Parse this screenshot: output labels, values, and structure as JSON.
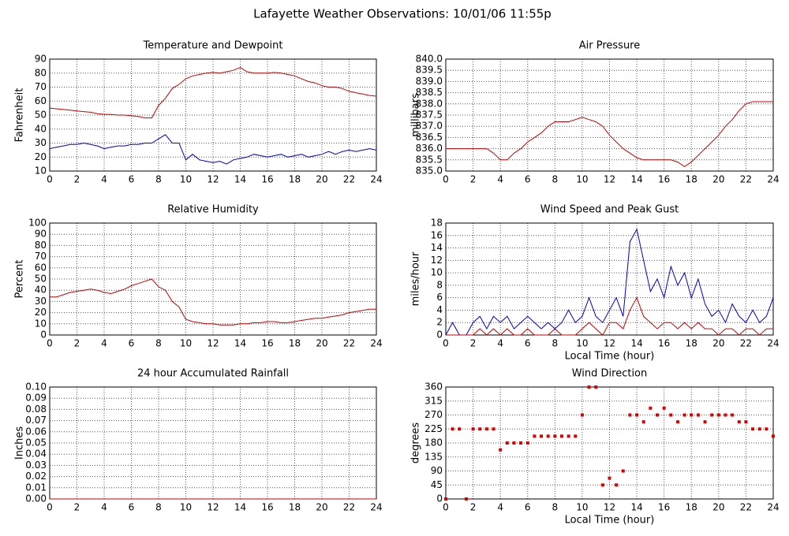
{
  "title": "Lafayette Weather Observations: 10/01/06 11:55p",
  "chart_data": [
    {
      "type": "line",
      "title": "Temperature and Dewpoint",
      "ylabel": "Fahrenheit",
      "x": [
        0,
        0.5,
        1,
        1.5,
        2,
        2.5,
        3,
        3.5,
        4,
        4.5,
        5,
        5.5,
        6,
        6.5,
        7,
        7.5,
        8,
        8.5,
        9,
        9.5,
        10,
        10.5,
        11,
        11.5,
        12,
        12.5,
        13,
        13.5,
        14,
        14.5,
        15,
        15.5,
        16,
        16.5,
        17,
        17.5,
        18,
        18.5,
        19,
        19.5,
        20,
        20.5,
        21,
        21.5,
        22,
        22.5,
        23,
        23.5,
        24
      ],
      "series": [
        {
          "color": "#cc0000",
          "values": [
            55,
            54.5,
            54,
            53.5,
            53,
            52.5,
            52,
            51,
            50.5,
            50.5,
            50,
            50,
            49.5,
            49,
            48,
            48,
            57,
            62,
            69,
            72,
            76,
            78,
            79,
            80,
            80.5,
            80,
            81,
            82,
            84,
            81,
            80,
            80,
            80,
            80.5,
            80,
            79,
            78,
            76,
            74,
            73,
            71,
            70,
            70,
            69,
            67,
            66,
            65,
            64,
            63.5
          ]
        },
        {
          "color": "#0000cc",
          "values": [
            26,
            27,
            28,
            29,
            29,
            30,
            29,
            28,
            26,
            27,
            28,
            28,
            29,
            29,
            30,
            30,
            33,
            36,
            30,
            30,
            18,
            22,
            18,
            17,
            16,
            17,
            15,
            18,
            19,
            20,
            22,
            21,
            20,
            21,
            22,
            20,
            21,
            22,
            20,
            21,
            22,
            24,
            22,
            24,
            25,
            24,
            25,
            26,
            25
          ]
        }
      ],
      "xlim": [
        0,
        24
      ],
      "xticks": [
        0,
        2,
        4,
        6,
        8,
        10,
        12,
        14,
        16,
        18,
        20,
        22,
        24
      ],
      "ylim": [
        10,
        90
      ],
      "yticks": [
        10,
        20,
        30,
        40,
        50,
        60,
        70,
        80,
        90
      ],
      "grid": true
    },
    {
      "type": "line",
      "title": "Air Pressure",
      "ylabel": "millibars",
      "x": [
        0,
        0.5,
        1,
        1.5,
        2,
        2.5,
        3,
        3.5,
        4,
        4.5,
        5,
        5.5,
        6,
        6.5,
        7,
        7.5,
        8,
        8.5,
        9,
        9.5,
        10,
        10.5,
        11,
        11.5,
        12,
        12.5,
        13,
        13.5,
        14,
        14.5,
        15,
        15.5,
        16,
        16.5,
        17,
        17.5,
        18,
        18.5,
        19,
        19.5,
        20,
        20.5,
        21,
        21.5,
        22,
        22.5,
        23,
        23.5,
        24
      ],
      "series": [
        {
          "color": "#cc0000",
          "values": [
            836.0,
            836.0,
            836.0,
            836.0,
            836.0,
            836.0,
            836.0,
            835.8,
            835.5,
            835.5,
            835.8,
            836.0,
            836.3,
            836.5,
            836.7,
            837.0,
            837.2,
            837.2,
            837.2,
            837.3,
            837.4,
            837.3,
            837.2,
            837.0,
            836.6,
            836.3,
            836.0,
            835.8,
            835.6,
            835.5,
            835.5,
            835.5,
            835.5,
            835.5,
            835.4,
            835.2,
            835.4,
            835.7,
            836.0,
            836.3,
            836.6,
            837.0,
            837.3,
            837.7,
            838.0,
            838.1,
            838.1,
            838.1,
            838.1
          ]
        }
      ],
      "xlim": [
        0,
        24
      ],
      "xticks": [
        0,
        2,
        4,
        6,
        8,
        10,
        12,
        14,
        16,
        18,
        20,
        22,
        24
      ],
      "ylim": [
        835,
        840
      ],
      "yticks": [
        {
          "value": 835,
          "label": "835.0"
        },
        835.5,
        {
          "value": 836,
          "label": "836.0"
        },
        836.5,
        {
          "value": 837,
          "label": "837.0"
        },
        837.5,
        {
          "value": 838,
          "label": "838.0"
        },
        838.5,
        {
          "value": 839,
          "label": "839.0"
        },
        839.5,
        {
          "value": 840,
          "label": "840.0"
        }
      ],
      "grid": true
    },
    {
      "type": "line",
      "title": "Relative Humidity",
      "ylabel": "Percent",
      "x": [
        0,
        0.5,
        1,
        1.5,
        2,
        2.5,
        3,
        3.5,
        4,
        4.5,
        5,
        5.5,
        6,
        6.5,
        7,
        7.5,
        8,
        8.5,
        9,
        9.5,
        10,
        10.5,
        11,
        11.5,
        12,
        12.5,
        13,
        13.5,
        14,
        14.5,
        15,
        15.5,
        16,
        16.5,
        17,
        17.5,
        18,
        18.5,
        19,
        19.5,
        20,
        20.5,
        21,
        21.5,
        22,
        22.5,
        23,
        23.5,
        24
      ],
      "series": [
        {
          "color": "#cc0000",
          "values": [
            34,
            34,
            36,
            38,
            39,
            40,
            41,
            40,
            38,
            37,
            39,
            41,
            44,
            46,
            48,
            50,
            43,
            40,
            30,
            25,
            14,
            12,
            11,
            10,
            10,
            9,
            9,
            9,
            10,
            10,
            11,
            11,
            12,
            12,
            11,
            11,
            12,
            13,
            14,
            15,
            15,
            16,
            17,
            18,
            20,
            21,
            22,
            23,
            23
          ]
        }
      ],
      "xlim": [
        0,
        24
      ],
      "xticks": [
        0,
        2,
        4,
        6,
        8,
        10,
        12,
        14,
        16,
        18,
        20,
        22,
        24
      ],
      "ylim": [
        0,
        100
      ],
      "yticks": [
        0,
        10,
        20,
        30,
        40,
        50,
        60,
        70,
        80,
        90,
        100
      ],
      "grid": true
    },
    {
      "type": "line",
      "title": "Wind Speed and Peak Gust",
      "ylabel": "miles/hour",
      "xlabel": "Local Time (hour)",
      "x": [
        0,
        0.5,
        1,
        1.5,
        2,
        2.5,
        3,
        3.5,
        4,
        4.5,
        5,
        5.5,
        6,
        6.5,
        7,
        7.5,
        8,
        8.5,
        9,
        9.5,
        10,
        10.5,
        11,
        11.5,
        12,
        12.5,
        13,
        13.5,
        14,
        14.5,
        15,
        15.5,
        16,
        16.5,
        17,
        17.5,
        18,
        18.5,
        19,
        19.5,
        20,
        20.5,
        21,
        21.5,
        22,
        22.5,
        23,
        23.5,
        24
      ],
      "series": [
        {
          "color": "#0000cc",
          "values": [
            0,
            2,
            0,
            0,
            2,
            3,
            1,
            3,
            2,
            3,
            1,
            2,
            3,
            2,
            1,
            2,
            1,
            2,
            4,
            2,
            3,
            6,
            3,
            2,
            4,
            6,
            3,
            15,
            17,
            12,
            7,
            9,
            6,
            11,
            8,
            10,
            6,
            9,
            5,
            3,
            4,
            2,
            5,
            3,
            2,
            4,
            2,
            3,
            6
          ]
        },
        {
          "color": "#cc0000",
          "values": [
            0,
            0,
            0,
            0,
            0,
            1,
            0,
            1,
            0,
            1,
            0,
            0,
            1,
            0,
            0,
            0,
            1,
            0,
            0,
            0,
            1,
            2,
            1,
            0,
            2,
            2,
            1,
            4,
            6,
            3,
            2,
            1,
            2,
            2,
            1,
            2,
            1,
            2,
            1,
            1,
            0,
            1,
            1,
            0,
            1,
            1,
            0,
            1,
            1
          ]
        }
      ],
      "xlim": [
        0,
        24
      ],
      "xticks": [
        0,
        2,
        4,
        6,
        8,
        10,
        12,
        14,
        16,
        18,
        20,
        22,
        24
      ],
      "ylim": [
        0,
        18
      ],
      "yticks": [
        0,
        2,
        4,
        6,
        8,
        10,
        12,
        14,
        16,
        18
      ],
      "grid": true
    },
    {
      "type": "line",
      "title": "24 hour Accumulated Rainfall",
      "ylabel": "Inches",
      "x": [
        0,
        24
      ],
      "series": [
        {
          "color": "#cc0000",
          "values": [
            0,
            0
          ]
        }
      ],
      "xlim": [
        0,
        24
      ],
      "xticks": [
        0,
        2,
        4,
        6,
        8,
        10,
        12,
        14,
        16,
        18,
        20,
        22,
        24
      ],
      "ylim": [
        0,
        0.1
      ],
      "yticks": [
        {
          "value": 0,
          "label": "0.00"
        },
        0.01,
        0.02,
        0.03,
        0.04,
        0.05,
        0.06,
        0.07,
        0.08,
        0.09,
        {
          "value": 0.1,
          "label": "0.10"
        }
      ],
      "grid": true
    },
    {
      "type": "scatter",
      "title": "Wind Direction",
      "ylabel": "degrees",
      "xlabel": "Local Time (hour)",
      "x": [
        0,
        0.5,
        1,
        1.5,
        2,
        2.5,
        3,
        3.5,
        4,
        4.5,
        5,
        5.5,
        6,
        6.5,
        7,
        7.5,
        8,
        8.5,
        9,
        9.5,
        10,
        10.5,
        11,
        11.5,
        12,
        12.5,
        13,
        13.5,
        14,
        14.5,
        15,
        15.5,
        16,
        16.5,
        17,
        17.5,
        18,
        18.5,
        19,
        19.5,
        20,
        20.5,
        21,
        21.5,
        22,
        22.5,
        23,
        23.5,
        24
      ],
      "series": [
        {
          "color": "#dd0000",
          "values": [
            0,
            225,
            225,
            0,
            225,
            225,
            225,
            225,
            158,
            180,
            180,
            180,
            180,
            202,
            202,
            202,
            202,
            202,
            202,
            202,
            270,
            360,
            360,
            45,
            67,
            45,
            90,
            270,
            270,
            248,
            292,
            270,
            292,
            270,
            248,
            270,
            270,
            270,
            248,
            270,
            270,
            270,
            270,
            248,
            248,
            225,
            225,
            225,
            202
          ]
        }
      ],
      "xlim": [
        0,
        24
      ],
      "xticks": [
        0,
        2,
        4,
        6,
        8,
        10,
        12,
        14,
        16,
        18,
        20,
        22,
        24
      ],
      "ylim": [
        0,
        360
      ],
      "yticks": [
        0,
        45,
        90,
        135,
        180,
        225,
        270,
        315,
        360
      ],
      "grid": true
    }
  ]
}
